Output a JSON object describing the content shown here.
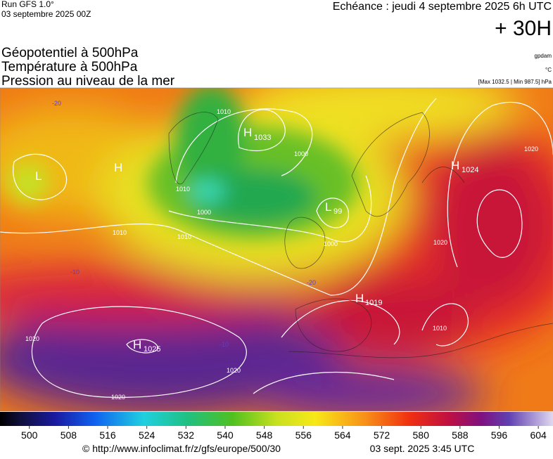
{
  "header": {
    "run": "Run GFS 1.0°",
    "run_date": "03 septembre 2025 00Z",
    "valid": "Echéance : jeudi 4 septembre 2025 6h UTC",
    "lead": "+ 30H"
  },
  "layers": [
    "Géopotentiel à 500hPa",
    "Température à 500hPa",
    "Pression au niveau de la mer"
  ],
  "units": [
    "gpdam",
    "°C",
    "[Max 1032.5 | Min 987.5] hPa"
  ],
  "map": {
    "centers": [
      {
        "letter": "H",
        "value": 1033
      },
      {
        "letter": "H",
        "value": 1024
      },
      {
        "letter": "H",
        "value": 1019
      },
      {
        "letter": "H",
        "value": 1025
      },
      {
        "letter": "L",
        "value": 99
      },
      {
        "letter": "L"
      },
      {
        "letter": "H"
      }
    ],
    "isobars": [
      1010,
      1000,
      1000,
      1010,
      1000,
      1020,
      1020,
      1020,
      1010,
      1010,
      1010,
      1020,
      1020
    ],
    "temperatures": [
      -20,
      -10,
      -10,
      -20
    ]
  },
  "colorbar": {
    "range": [
      494,
      607
    ],
    "ticks": [
      500,
      508,
      516,
      524,
      532,
      540,
      548,
      556,
      564,
      572,
      580,
      588,
      596,
      604
    ]
  },
  "footer": {
    "url": "© http://www.infoclimat.fr/z/gfs/europe/500/30",
    "generated": "03 sept. 2025  3:45 UTC"
  }
}
